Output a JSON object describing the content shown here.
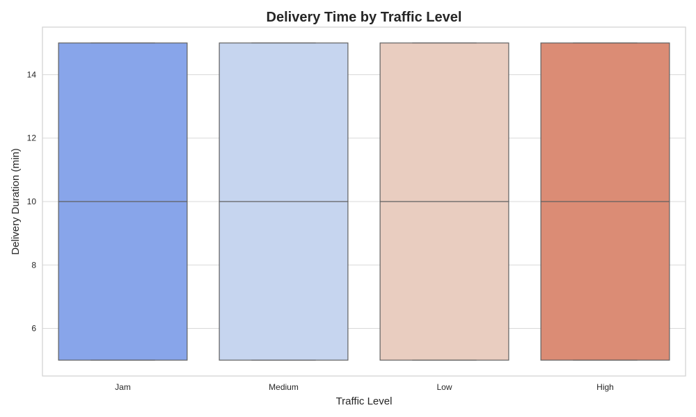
{
  "chart_data": {
    "type": "box",
    "title": "Delivery Time by Traffic Level",
    "xlabel": "Traffic Level",
    "ylabel": "Delivery Duration (min)",
    "ylim": [
      4.5,
      15.5
    ],
    "yticks": [
      6,
      8,
      10,
      12,
      14
    ],
    "grid": true,
    "categories": [
      "Jam",
      "Medium",
      "Low",
      "High"
    ],
    "colors": [
      "#88a5ea",
      "#c6d5ef",
      "#e9cdc0",
      "#db8c75"
    ],
    "series": [
      {
        "category": "Jam",
        "min": 5,
        "q1": 5,
        "median": 10,
        "q3": 15,
        "max": 15
      },
      {
        "category": "Medium",
        "min": 5,
        "q1": 5,
        "median": 10,
        "q3": 15,
        "max": 15
      },
      {
        "category": "Low",
        "min": 5,
        "q1": 5,
        "median": 10,
        "q3": 15,
        "max": 15
      },
      {
        "category": "High",
        "min": 5,
        "q1": 5,
        "median": 10,
        "q3": 15,
        "max": 15
      }
    ]
  }
}
